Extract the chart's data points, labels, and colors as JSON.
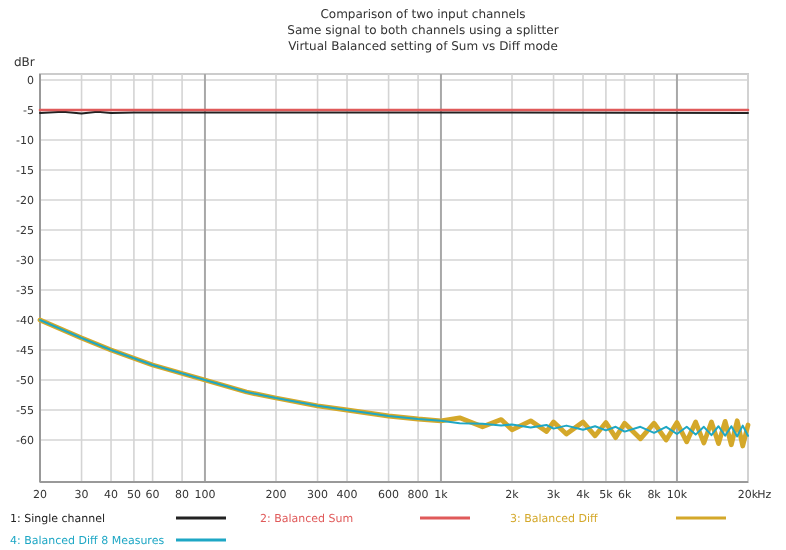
{
  "chart_data": {
    "type": "line",
    "title": "Comparison of two input channels",
    "subtitle": "Same signal to both channels using a splitter\nVirtual Balanced setting of Sum vs Diff mode",
    "ylabel": "dBr",
    "log": "x",
    "grid": true,
    "legend": "bottom",
    "line_style": "solid",
    "marker": "none",
    "xlim": [
      20,
      20000
    ],
    "ylim": [
      -67,
      1
    ],
    "xticks": [
      20,
      30,
      40,
      50,
      60,
      80,
      100,
      200,
      300,
      400,
      600,
      800,
      {
        "value": 1000,
        "label": "1k"
      },
      {
        "value": 2000,
        "label": "2k"
      },
      {
        "value": 3000,
        "label": "3k"
      },
      {
        "value": 4000,
        "label": "4k"
      },
      {
        "value": 5000,
        "label": "5k"
      },
      {
        "value": 6000,
        "label": "6k"
      },
      {
        "value": 8000,
        "label": "8k"
      },
      {
        "value": 10000,
        "label": "10k"
      },
      {
        "value": 20000,
        "label": "20k"
      }
    ],
    "xlabel": "Hz",
    "yticks": [
      0,
      -5,
      -10,
      -15,
      -20,
      -25,
      -30,
      -35,
      -40,
      -45,
      -50,
      -55,
      -60
    ],
    "series": [
      {
        "name": "1: Single channel",
        "color": "#222222",
        "x": [
          20,
          25,
          30,
          35,
          40,
          50,
          100,
          1000,
          20000
        ],
        "values": [
          -5.5,
          -5.3,
          -5.6,
          -5.3,
          -5.5,
          -5.4,
          -5.4,
          -5.4,
          -5.5
        ]
      },
      {
        "name": "2: Balanced Sum",
        "color": "#e05a5a",
        "x": [
          20,
          20000
        ],
        "values": [
          -5,
          -5
        ]
      },
      {
        "name": "3: Balanced Diff",
        "color": "#d4a82a",
        "x": [
          20,
          30,
          40,
          60,
          100,
          150,
          200,
          300,
          400,
          600,
          800,
          1000,
          1200,
          1500,
          1800,
          2000,
          2400,
          2800,
          3000,
          3400,
          4000,
          4500,
          5000,
          5500,
          6000,
          7000,
          8000,
          9000,
          10000,
          11000,
          12000,
          13000,
          14000,
          15000,
          16000,
          17000,
          18000,
          19000,
          20000
        ],
        "values": [
          -40,
          -43,
          -45,
          -47.5,
          -50,
          -52,
          -53,
          -54.3,
          -55,
          -56,
          -56.5,
          -56.8,
          -56.3,
          -57.8,
          -56.6,
          -58.3,
          -56.8,
          -58.6,
          -57,
          -59,
          -57,
          -59.3,
          -57.1,
          -59.6,
          -57.2,
          -59.8,
          -57.2,
          -60,
          -57.1,
          -60.3,
          -57,
          -60.5,
          -57,
          -60.6,
          -56.9,
          -60.8,
          -56.8,
          -61,
          -57.5
        ]
      },
      {
        "name": "4: Balanced Diff 8 Measures",
        "color": "#1ea7c5",
        "x": [
          20,
          30,
          40,
          60,
          100,
          150,
          200,
          300,
          400,
          600,
          800,
          1000,
          1200,
          1500,
          1800,
          2000,
          2400,
          2800,
          3000,
          3400,
          4000,
          4500,
          5000,
          5500,
          6000,
          7000,
          8000,
          9000,
          10000,
          11000,
          12000,
          13000,
          14000,
          15000,
          16000,
          17000,
          18000,
          19000,
          20000
        ],
        "values": [
          -40,
          -43,
          -45,
          -47.5,
          -50,
          -52,
          -53,
          -54.3,
          -55,
          -56,
          -56.5,
          -56.8,
          -57.2,
          -57.3,
          -57.6,
          -57.4,
          -57.9,
          -57.5,
          -58.1,
          -57.6,
          -58.3,
          -57.7,
          -58.4,
          -57.8,
          -58.6,
          -57.8,
          -58.8,
          -57.8,
          -59,
          -57.8,
          -59.1,
          -57.8,
          -59.2,
          -57.7,
          -59.3,
          -57.7,
          -59.4,
          -57.6,
          -59.3
        ]
      }
    ]
  }
}
